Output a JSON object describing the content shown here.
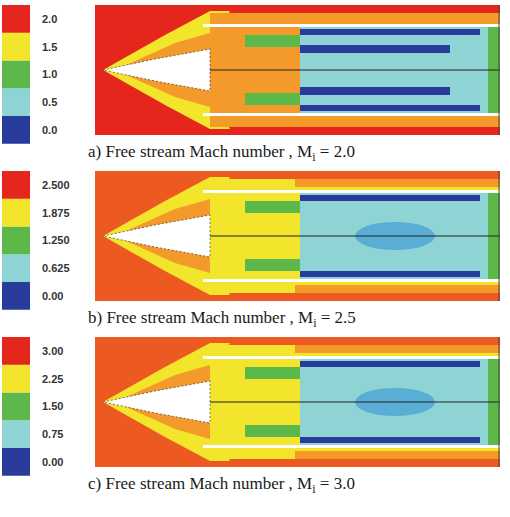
{
  "chart_data": [
    {
      "type": "contour",
      "caption": {
        "prefix": "a) Free stream Mach number , M",
        "subscript": "i",
        "suffix": " = 2.0"
      },
      "colorbar": {
        "range": [
          0,
          2.0
        ],
        "ticks": [
          {
            "value": 0,
            "label": "0.0"
          },
          {
            "value": 0.5,
            "label": "0.5"
          },
          {
            "value": 1,
            "label": "1.0"
          },
          {
            "value": 1.5,
            "label": "1.5"
          },
          {
            "value": 2,
            "label": "2.0"
          }
        ],
        "colors": [
          "#283c9c",
          "#8fd4d4",
          "#5cb848",
          "#f2e52c",
          "#e5261c"
        ]
      }
    },
    {
      "type": "contour",
      "caption": {
        "prefix": "b) Free stream Mach number , M",
        "subscript": "i",
        "suffix": " = 2.5"
      },
      "colorbar": {
        "range": [
          0,
          2.5
        ],
        "ticks": [
          {
            "value": 0,
            "label": "0.00"
          },
          {
            "value": 0.625,
            "label": "0.625"
          },
          {
            "value": 1.25,
            "label": "1.250"
          },
          {
            "value": 1.875,
            "label": "1.875"
          },
          {
            "value": 2.5,
            "label": "2.500"
          }
        ],
        "colors": [
          "#283c9c",
          "#8fd4d4",
          "#5cb848",
          "#f2e52c",
          "#e5261c"
        ]
      }
    },
    {
      "type": "contour",
      "caption": {
        "prefix": "c) Free stream Mach number , M",
        "subscript": "i",
        "suffix": " = 3.0"
      },
      "colorbar": {
        "range": [
          0,
          3.0
        ],
        "ticks": [
          {
            "value": 0,
            "label": "0.00"
          },
          {
            "value": 0.75,
            "label": "0.75"
          },
          {
            "value": 1.5,
            "label": "1.50"
          },
          {
            "value": 2.25,
            "label": "2.25"
          },
          {
            "value": 3,
            "label": "3.00"
          }
        ],
        "colors": [
          "#283c9c",
          "#8fd4d4",
          "#5cb848",
          "#f2e52c",
          "#e5261c"
        ]
      }
    }
  ]
}
